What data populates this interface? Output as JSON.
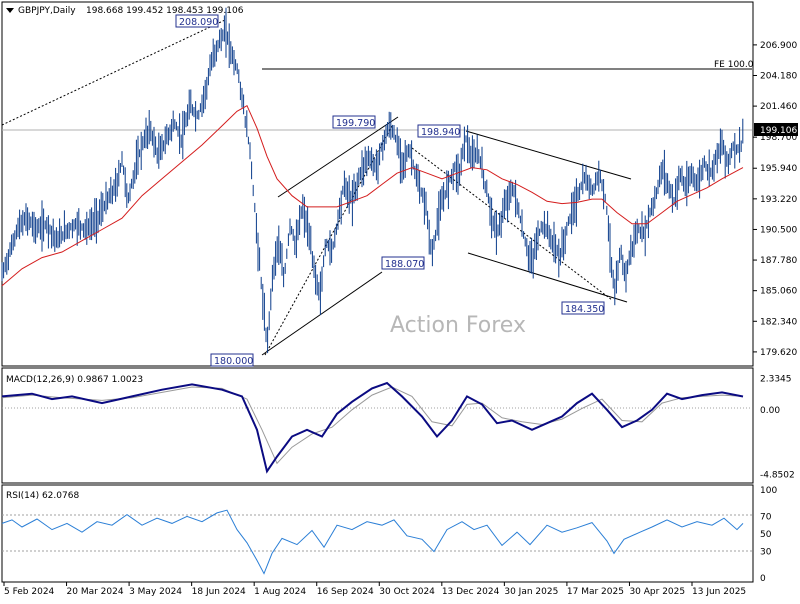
{
  "chart_data": {
    "type": "line",
    "subtype": "ohlc-bar",
    "title": "GBPJPY,Daily",
    "ohlc_text": "198.668 199.452 198.453 199.106",
    "last_price": "199.106",
    "watermark": "Action Forex",
    "price_axis": {
      "ylim": [
        178.9,
        210.0
      ],
      "ticks": [
        "206.900",
        "204.180",
        "201.460",
        "198.700",
        "195.940",
        "193.220",
        "190.500",
        "187.780",
        "185.060",
        "182.340",
        "179.620"
      ],
      "tick_values": [
        206.9,
        204.18,
        201.46,
        198.7,
        195.94,
        193.22,
        190.5,
        187.78,
        185.06,
        182.34,
        179.62
      ]
    },
    "x_axis": {
      "labels": [
        "5 Feb 2024",
        "20 Mar 2024",
        "3 May 2024",
        "18 Jun 2024",
        "1 Aug 2024",
        "16 Sep 2024",
        "30 Oct 2024",
        "13 Dec 2024",
        "30 Jan 2025",
        "17 Mar 2025",
        "30 Apr 2025",
        "13 Jun 2025"
      ]
    },
    "price_path": [
      [
        0,
        186.5
      ],
      [
        8,
        188.5
      ],
      [
        15,
        190.5
      ],
      [
        25,
        191.5
      ],
      [
        35,
        190.5
      ],
      [
        45,
        191.0
      ],
      [
        55,
        189.5
      ],
      [
        65,
        190.5
      ],
      [
        75,
        191.0
      ],
      [
        85,
        190.5
      ],
      [
        95,
        191.5
      ],
      [
        105,
        193.0
      ],
      [
        115,
        194.5
      ],
      [
        120,
        196.8
      ],
      [
        126,
        193.0
      ],
      [
        132,
        195.5
      ],
      [
        140,
        198.0
      ],
      [
        148,
        199.5
      ],
      [
        156,
        197.0
      ],
      [
        164,
        198.5
      ],
      [
        172,
        200.0
      ],
      [
        180,
        198.5
      ],
      [
        188,
        201.5
      ],
      [
        196,
        200.5
      ],
      [
        204,
        203.0
      ],
      [
        210,
        205.5
      ],
      [
        216,
        207.0
      ],
      [
        224,
        208.09
      ],
      [
        230,
        206.0
      ],
      [
        236,
        204.5
      ],
      [
        242,
        201.0
      ],
      [
        248,
        197.5
      ],
      [
        254,
        191.0
      ],
      [
        260,
        185.0
      ],
      [
        265,
        180.0
      ],
      [
        270,
        186.0
      ],
      [
        276,
        189.5
      ],
      [
        282,
        186.0
      ],
      [
        288,
        191.0
      ],
      [
        294,
        189.0
      ],
      [
        300,
        192.5
      ],
      [
        306,
        190.5
      ],
      [
        312,
        187.0
      ],
      [
        318,
        184.5
      ],
      [
        324,
        189.5
      ],
      [
        330,
        188.5
      ],
      [
        336,
        191.5
      ],
      [
        342,
        194.5
      ],
      [
        350,
        193.0
      ],
      [
        358,
        195.5
      ],
      [
        366,
        197.0
      ],
      [
        374,
        196.0
      ],
      [
        382,
        198.5
      ],
      [
        388,
        199.79
      ],
      [
        394,
        198.5
      ],
      [
        400,
        196.5
      ],
      [
        408,
        197.5
      ],
      [
        416,
        194.5
      ],
      [
        424,
        192.5
      ],
      [
        430,
        188.07
      ],
      [
        436,
        191.5
      ],
      [
        444,
        194.0
      ],
      [
        452,
        196.0
      ],
      [
        458,
        195.5
      ],
      [
        463,
        198.94
      ],
      [
        470,
        196.5
      ],
      [
        476,
        197.5
      ],
      [
        482,
        195.0
      ],
      [
        488,
        192.5
      ],
      [
        494,
        190.0
      ],
      [
        500,
        191.5
      ],
      [
        506,
        193.5
      ],
      [
        512,
        194.0
      ],
      [
        518,
        191.5
      ],
      [
        524,
        189.0
      ],
      [
        530,
        187.5
      ],
      [
        536,
        190.0
      ],
      [
        542,
        191.0
      ],
      [
        550,
        189.5
      ],
      [
        558,
        188.0
      ],
      [
        566,
        191.0
      ],
      [
        574,
        193.0
      ],
      [
        582,
        195.0
      ],
      [
        590,
        194.0
      ],
      [
        598,
        195.5
      ],
      [
        604,
        193.0
      ],
      [
        609,
        188.0
      ],
      [
        613,
        184.35
      ],
      [
        618,
        188.5
      ],
      [
        624,
        186.5
      ],
      [
        630,
        189.0
      ],
      [
        636,
        190.5
      ],
      [
        642,
        190.0
      ],
      [
        648,
        192.0
      ],
      [
        654,
        193.5
      ],
      [
        660,
        196.0
      ],
      [
        666,
        194.5
      ],
      [
        672,
        193.0
      ],
      [
        678,
        195.5
      ],
      [
        684,
        194.0
      ],
      [
        690,
        195.5
      ],
      [
        696,
        194.5
      ],
      [
        702,
        196.5
      ],
      [
        708,
        195.5
      ],
      [
        714,
        197.0
      ],
      [
        720,
        198.0
      ],
      [
        726,
        196.5
      ],
      [
        732,
        198.0
      ],
      [
        738,
        197.5
      ],
      [
        741,
        199.106
      ]
    ],
    "ma_path": [
      [
        0,
        185.5
      ],
      [
        20,
        187.0
      ],
      [
        40,
        188.0
      ],
      [
        60,
        188.5
      ],
      [
        80,
        189.5
      ],
      [
        100,
        190.5
      ],
      [
        120,
        191.5
      ],
      [
        140,
        193.5
      ],
      [
        160,
        195.0
      ],
      [
        180,
        196.5
      ],
      [
        200,
        198.0
      ],
      [
        220,
        199.7
      ],
      [
        235,
        201.0
      ],
      [
        245,
        201.5
      ],
      [
        255,
        199.5
      ],
      [
        265,
        197.0
      ],
      [
        275,
        195.0
      ],
      [
        290,
        193.5
      ],
      [
        305,
        192.5
      ],
      [
        320,
        192.5
      ],
      [
        335,
        192.5
      ],
      [
        350,
        193.0
      ],
      [
        365,
        193.5
      ],
      [
        380,
        194.5
      ],
      [
        395,
        195.5
      ],
      [
        410,
        196.0
      ],
      [
        425,
        195.5
      ],
      [
        440,
        195.0
      ],
      [
        455,
        195.5
      ],
      [
        470,
        196.0
      ],
      [
        485,
        195.8
      ],
      [
        500,
        195.0
      ],
      [
        515,
        194.5
      ],
      [
        530,
        193.8
      ],
      [
        545,
        193.0
      ],
      [
        560,
        192.8
      ],
      [
        575,
        192.9
      ],
      [
        590,
        193.2
      ],
      [
        600,
        193.2
      ],
      [
        615,
        192.0
      ],
      [
        630,
        191.0
      ],
      [
        645,
        191.0
      ],
      [
        660,
        192.0
      ],
      [
        675,
        193.0
      ],
      [
        690,
        193.6
      ],
      [
        705,
        194.2
      ],
      [
        720,
        195.0
      ],
      [
        741,
        196.0
      ]
    ],
    "annotations": [
      {
        "label": "208.090",
        "value": 208.09
      },
      {
        "label": "199.790",
        "value": 199.79
      },
      {
        "label": "198.940",
        "value": 198.94
      },
      {
        "label": "188.070",
        "value": 188.07
      },
      {
        "label": "184.350",
        "value": 184.35
      },
      {
        "label": "180.000",
        "value": 180.0
      },
      {
        "label": "FE 100.0",
        "value": 204.3
      }
    ],
    "macd": {
      "label": "MACD(12,26,9) 0.9867 1.0023",
      "ticks": [
        "2.3345",
        "0.00",
        "-4.8502"
      ],
      "tick_values": [
        2.3345,
        0.0,
        -4.8502
      ],
      "ylim": [
        -5.1,
        2.6
      ],
      "main": [
        [
          0,
          1.0
        ],
        [
          30,
          1.2
        ],
        [
          50,
          0.8
        ],
        [
          70,
          1.0
        ],
        [
          100,
          0.5
        ],
        [
          130,
          1.0
        ],
        [
          160,
          1.5
        ],
        [
          190,
          1.9
        ],
        [
          220,
          1.5
        ],
        [
          240,
          1.0
        ],
        [
          255,
          -1.5
        ],
        [
          265,
          -4.6
        ],
        [
          275,
          -3.5
        ],
        [
          290,
          -2.0
        ],
        [
          305,
          -1.5
        ],
        [
          320,
          -2.0
        ],
        [
          335,
          -0.3
        ],
        [
          350,
          0.6
        ],
        [
          370,
          1.6
        ],
        [
          385,
          2.0
        ],
        [
          400,
          1.0
        ],
        [
          420,
          -0.5
        ],
        [
          435,
          -2.0
        ],
        [
          450,
          -0.8
        ],
        [
          465,
          1.0
        ],
        [
          480,
          0.4
        ],
        [
          495,
          -1.0
        ],
        [
          510,
          -0.8
        ],
        [
          530,
          -1.5
        ],
        [
          545,
          -1.0
        ],
        [
          560,
          -0.5
        ],
        [
          575,
          0.5
        ],
        [
          590,
          1.2
        ],
        [
          605,
          0.0
        ],
        [
          620,
          -1.3
        ],
        [
          635,
          -0.8
        ],
        [
          650,
          0.0
        ],
        [
          665,
          1.2
        ],
        [
          680,
          0.8
        ],
        [
          700,
          1.1
        ],
        [
          720,
          1.3
        ],
        [
          741,
          0.99
        ]
      ],
      "signal": [
        [
          0,
          0.9
        ],
        [
          30,
          1.1
        ],
        [
          60,
          0.9
        ],
        [
          100,
          0.7
        ],
        [
          130,
          0.9
        ],
        [
          160,
          1.3
        ],
        [
          190,
          1.7
        ],
        [
          220,
          1.6
        ],
        [
          245,
          0.8
        ],
        [
          260,
          -1.5
        ],
        [
          275,
          -4.0
        ],
        [
          290,
          -2.8
        ],
        [
          310,
          -1.8
        ],
        [
          330,
          -1.3
        ],
        [
          350,
          0.0
        ],
        [
          370,
          1.1
        ],
        [
          390,
          1.7
        ],
        [
          410,
          1.0
        ],
        [
          430,
          -0.9
        ],
        [
          450,
          -1.2
        ],
        [
          465,
          0.4
        ],
        [
          480,
          0.5
        ],
        [
          500,
          -0.6
        ],
        [
          520,
          -0.9
        ],
        [
          540,
          -1.1
        ],
        [
          560,
          -0.7
        ],
        [
          580,
          0.1
        ],
        [
          600,
          0.8
        ],
        [
          620,
          -0.8
        ],
        [
          640,
          -0.9
        ],
        [
          660,
          0.5
        ],
        [
          680,
          0.9
        ],
        [
          700,
          1.0
        ],
        [
          720,
          1.1
        ],
        [
          741,
          1.0
        ]
      ]
    },
    "rsi": {
      "label": "RSI(14) 62.0768",
      "ticks": [
        "100",
        "70",
        "50",
        "30",
        "0"
      ],
      "tick_values": [
        100,
        70,
        50,
        30,
        0
      ],
      "ylim": [
        0,
        100
      ],
      "line": [
        [
          0,
          62
        ],
        [
          10,
          66
        ],
        [
          20,
          58
        ],
        [
          35,
          67
        ],
        [
          50,
          55
        ],
        [
          65,
          62
        ],
        [
          80,
          52
        ],
        [
          95,
          64
        ],
        [
          110,
          60
        ],
        [
          125,
          72
        ],
        [
          140,
          60
        ],
        [
          155,
          68
        ],
        [
          170,
          62
        ],
        [
          185,
          70
        ],
        [
          200,
          64
        ],
        [
          215,
          74
        ],
        [
          225,
          77
        ],
        [
          235,
          55
        ],
        [
          245,
          40
        ],
        [
          255,
          20
        ],
        [
          262,
          5
        ],
        [
          270,
          28
        ],
        [
          280,
          45
        ],
        [
          295,
          38
        ],
        [
          310,
          54
        ],
        [
          322,
          35
        ],
        [
          335,
          60
        ],
        [
          350,
          55
        ],
        [
          365,
          64
        ],
        [
          380,
          60
        ],
        [
          392,
          66
        ],
        [
          405,
          48
        ],
        [
          420,
          44
        ],
        [
          432,
          30
        ],
        [
          445,
          55
        ],
        [
          460,
          64
        ],
        [
          472,
          55
        ],
        [
          485,
          60
        ],
        [
          500,
          37
        ],
        [
          515,
          52
        ],
        [
          528,
          38
        ],
        [
          545,
          60
        ],
        [
          560,
          52
        ],
        [
          575,
          57
        ],
        [
          590,
          63
        ],
        [
          605,
          42
        ],
        [
          612,
          28
        ],
        [
          622,
          44
        ],
        [
          638,
          52
        ],
        [
          650,
          58
        ],
        [
          665,
          66
        ],
        [
          680,
          58
        ],
        [
          695,
          64
        ],
        [
          710,
          60
        ],
        [
          722,
          68
        ],
        [
          735,
          55
        ],
        [
          741,
          62
        ]
      ]
    },
    "x_range": [
      0,
      750
    ],
    "grid": false,
    "legend": "none",
    "colors": {
      "price": "#0a3b8a",
      "ma": "#d41d1d",
      "macd": "#0b0b82",
      "signal": "#9a9a9a",
      "rsi": "#2b7fd6",
      "label_box": "#23318f",
      "channel": "#000000"
    }
  }
}
